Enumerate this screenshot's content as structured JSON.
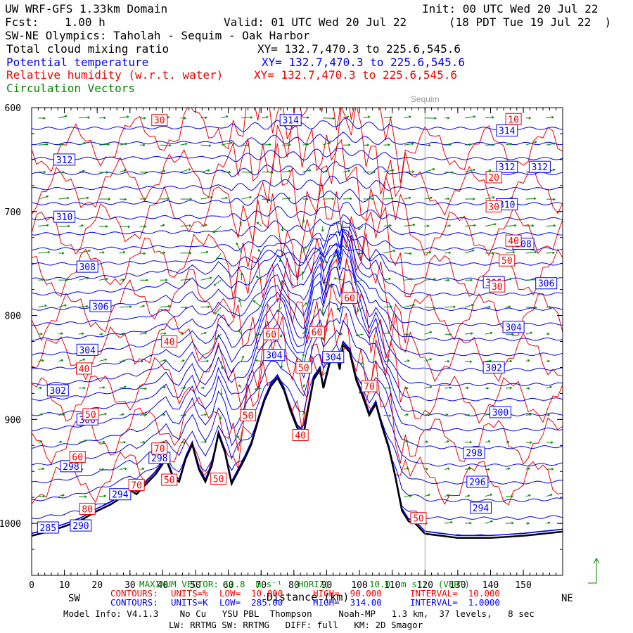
{
  "header": {
    "model": "UW WRF-GFS 1.33km Domain",
    "init": "Init: 00 UTC Wed 20 Jul 22",
    "fcst_label": "Fcst:",
    "fcst_value": "1.00 h",
    "valid": "Valid: 01 UTC Wed 20 Jul 22",
    "pdt": "(18 PDT Tue 19 Jul 22  )",
    "section": "SW-NE Olympics: Taholah - Sequim - Oak Harbor",
    "fields": [
      {
        "name": "Total cloud mixing ratio",
        "xy": "XY= 132.7,470.3 to 225.6,545.6",
        "color": "#000000"
      },
      {
        "name": "Potential temperature",
        "xy": "XY= 132.7,470.3 to 225.6,545.6",
        "color": "#0000ee"
      },
      {
        "name": "Relative humidity (w.r.t. water)",
        "xy": "XY= 132.7,470.3 to 225.6,545.6",
        "color": "#ee0000"
      },
      {
        "name": "Circulation Vectors",
        "xy": "",
        "color": "#008800"
      }
    ]
  },
  "colors": {
    "theta": "#0000ee",
    "rh": "#ee0000",
    "vectors": "#008800",
    "terrain": "#000000",
    "marker": "#aaaaaa"
  },
  "chart_data": {
    "type": "cross-section",
    "x_ticks": [
      0,
      10,
      20,
      30,
      40,
      50,
      60,
      70,
      80,
      90,
      100,
      110,
      120,
      130,
      140,
      150
    ],
    "y_ticks": [
      600,
      700,
      800,
      900,
      1000
    ],
    "y_tick_labels": [
      "600",
      "700",
      "800",
      "900",
      "1000"
    ],
    "xlim": [
      0,
      162
    ],
    "ylim": [
      1050,
      600
    ],
    "xlabel": "Distance (km)",
    "left_end": "SW",
    "right_end": "NE",
    "location_marker": {
      "label": "Sequim",
      "x": 120
    },
    "terrain": [
      [
        0,
        1012
      ],
      [
        5,
        1008
      ],
      [
        10,
        1003
      ],
      [
        15,
        997
      ],
      [
        20,
        988
      ],
      [
        24,
        982
      ],
      [
        27,
        976
      ],
      [
        30,
        968
      ],
      [
        32,
        972
      ],
      [
        35,
        962
      ],
      [
        38,
        952
      ],
      [
        41,
        938
      ],
      [
        43,
        955
      ],
      [
        45,
        960
      ],
      [
        47,
        938
      ],
      [
        49,
        924
      ],
      [
        51,
        948
      ],
      [
        53,
        960
      ],
      [
        55,
        944
      ],
      [
        57,
        914
      ],
      [
        59,
        932
      ],
      [
        61,
        962
      ],
      [
        63,
        950
      ],
      [
        65,
        938
      ],
      [
        67,
        924
      ],
      [
        69,
        902
      ],
      [
        71,
        882
      ],
      [
        73,
        868
      ],
      [
        75,
        860
      ],
      [
        77,
        872
      ],
      [
        79,
        892
      ],
      [
        81,
        908
      ],
      [
        83,
        914
      ],
      [
        84,
        896
      ],
      [
        86,
        862
      ],
      [
        88,
        852
      ],
      [
        89,
        870
      ],
      [
        91,
        845
      ],
      [
        93,
        838
      ],
      [
        94,
        852
      ],
      [
        95,
        828
      ],
      [
        97,
        835
      ],
      [
        99,
        862
      ],
      [
        101,
        878
      ],
      [
        103,
        896
      ],
      [
        105,
        885
      ],
      [
        107,
        908
      ],
      [
        109,
        928
      ],
      [
        111,
        956
      ],
      [
        113,
        988
      ],
      [
        115,
        998
      ],
      [
        117,
        1000
      ],
      [
        120,
        1010
      ],
      [
        125,
        1012
      ],
      [
        130,
        1014
      ],
      [
        140,
        1014
      ],
      [
        150,
        1012
      ],
      [
        156,
        1010
      ],
      [
        162,
        1008
      ]
    ],
    "theta_contours": {
      "units": "K",
      "low": 285.0,
      "high": 314.0,
      "interval": 1.0
    },
    "rh_contours": {
      "units": "%",
      "low": 10.0,
      "high": 90.0,
      "interval": 10.0
    },
    "theta_labels": [
      {
        "text": "314",
        "x": 79,
        "p": 612
      },
      {
        "text": "314",
        "x": 145,
        "p": 622
      },
      {
        "text": "312",
        "x": 10,
        "p": 650
      },
      {
        "text": "312",
        "x": 145,
        "p": 657
      },
      {
        "text": "312",
        "x": 155,
        "p": 657
      },
      {
        "text": "310",
        "x": 10,
        "p": 705
      },
      {
        "text": "310",
        "x": 145,
        "p": 693
      },
      {
        "text": "308",
        "x": 17,
        "p": 753
      },
      {
        "text": "308",
        "x": 150,
        "p": 731
      },
      {
        "text": "306",
        "x": 21,
        "p": 791
      },
      {
        "text": "306",
        "x": 141,
        "p": 768
      },
      {
        "text": "306",
        "x": 157,
        "p": 769
      },
      {
        "text": "304",
        "x": 17,
        "p": 833
      },
      {
        "text": "304",
        "x": 74,
        "p": 838
      },
      {
        "text": "304",
        "x": 92,
        "p": 840
      },
      {
        "text": "304",
        "x": 147,
        "p": 811
      },
      {
        "text": "302",
        "x": 8,
        "p": 872
      },
      {
        "text": "302",
        "x": 141,
        "p": 850
      },
      {
        "text": "300",
        "x": 17,
        "p": 900
      },
      {
        "text": "300",
        "x": 143,
        "p": 893
      },
      {
        "text": "298",
        "x": 12,
        "p": 945
      },
      {
        "text": "298",
        "x": 39,
        "p": 937
      },
      {
        "text": "298",
        "x": 135,
        "p": 932
      },
      {
        "text": "296",
        "x": 136,
        "p": 960
      },
      {
        "text": "294",
        "x": 27,
        "p": 972
      },
      {
        "text": "294",
        "x": 137,
        "p": 985
      },
      {
        "text": "290",
        "x": 15,
        "p": 1002
      },
      {
        "text": "285",
        "x": 5,
        "p": 1004
      }
    ],
    "rh_labels": [
      {
        "text": "30",
        "x": 39,
        "p": 612
      },
      {
        "text": "10",
        "x": 147,
        "p": 611
      },
      {
        "text": "20",
        "x": 141,
        "p": 667
      },
      {
        "text": "30",
        "x": 141,
        "p": 695
      },
      {
        "text": "40",
        "x": 147,
        "p": 728
      },
      {
        "text": "50",
        "x": 145,
        "p": 747
      },
      {
        "text": "30",
        "x": 142,
        "p": 772
      },
      {
        "text": "60",
        "x": 97,
        "p": 783
      },
      {
        "text": "60",
        "x": 73,
        "p": 818
      },
      {
        "text": "60",
        "x": 87,
        "p": 816
      },
      {
        "text": "40",
        "x": 42,
        "p": 825
      },
      {
        "text": "40",
        "x": 16,
        "p": 851
      },
      {
        "text": "50",
        "x": 83,
        "p": 850
      },
      {
        "text": "70",
        "x": 103,
        "p": 868
      },
      {
        "text": "50",
        "x": 66,
        "p": 896
      },
      {
        "text": "50",
        "x": 18,
        "p": 895
      },
      {
        "text": "40",
        "x": 82,
        "p": 915
      },
      {
        "text": "70",
        "x": 39,
        "p": 928
      },
      {
        "text": "60",
        "x": 14,
        "p": 936
      },
      {
        "text": "50",
        "x": 42,
        "p": 958
      },
      {
        "text": "50",
        "x": 57,
        "p": 957
      },
      {
        "text": "70",
        "x": 32,
        "p": 963
      },
      {
        "text": "80",
        "x": 17,
        "p": 986
      },
      {
        "text": "50",
        "x": 118,
        "p": 995
      }
    ]
  },
  "max_vector": "MAXIMUM VECTOR: 11.8  m s⁻¹  (HORIZ)",
  "vert_vector": "10.0  m s⁻¹  (VERT)",
  "footer": {
    "rh_row": {
      "label": "CONTOURS:",
      "units": "UNITS=%",
      "low": "LOW=  10.000",
      "high": "HIGH=  90.000",
      "interval": "INTERVAL=  10.000"
    },
    "theta_row": {
      "label": "CONTOURS:",
      "units": "UNITS=K",
      "low": "LOW=  285.00",
      "high": "HIGH=  314.00",
      "interval": "INTERVAL=  1.0000"
    },
    "model_info": "Model Info: V4.1.3    No Cu   YSU PBL  Thompson     Noah-MP   1.3 km,  37 levels,   8 sec",
    "physics": "LW: RRTMG SW: RRTMG   DIFF: full   KM: 2D Smagor"
  }
}
